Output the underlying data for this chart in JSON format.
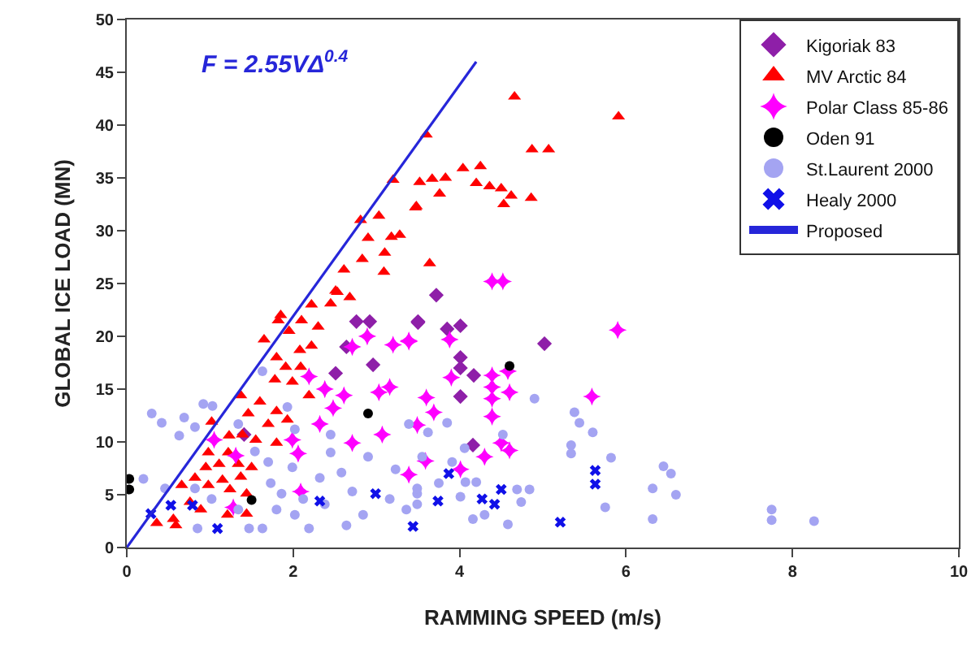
{
  "chart_data": {
    "type": "scatter",
    "xlabel": "RAMMING SPEED (m/s)",
    "ylabel": "GLOBAL ICE LOAD (MN)",
    "xlim": [
      0,
      10
    ],
    "xticks": [
      0,
      2,
      4,
      6,
      8,
      10
    ],
    "ylim": [
      0,
      50
    ],
    "yticks": [
      0,
      5,
      10,
      15,
      20,
      25,
      30,
      35,
      40,
      45,
      50
    ],
    "legend": "top right",
    "annotations": [
      "F = 2.55VΔ$^{0.4}$"
    ],
    "series": [
      {
        "name": "Kigoriak 83",
        "color": "#8e1fa8",
        "marker": "diamond",
        "x": [
          2.76,
          2.92,
          3.5,
          2.64,
          2.96,
          2.51,
          1.41,
          3.72,
          3.5,
          3.85,
          4.01,
          4.01,
          4.01,
          4.17,
          4.01,
          5.02,
          4.16
        ],
        "values": [
          21.4,
          21.4,
          21.4,
          19.0,
          17.3,
          16.5,
          10.7,
          23.9,
          21.3,
          20.7,
          21.0,
          18.0,
          17.0,
          16.3,
          14.3,
          19.3,
          9.7
        ]
      },
      {
        "name": "MV Arctic 84",
        "color": "#ff0000",
        "marker": "triangle",
        "x": [
          4.66,
          5.91,
          4.87,
          5.07,
          3.6,
          3.52,
          3.67,
          3.83,
          4.04,
          4.25,
          4.2,
          4.36,
          4.5,
          4.62,
          4.53,
          4.86,
          3.76,
          3.47,
          3.64,
          3.2,
          3.48,
          3.03,
          2.81,
          2.9,
          3.18,
          3.28,
          3.1,
          2.83,
          2.61,
          3.09,
          2.51,
          2.53,
          2.68,
          2.45,
          2.22,
          2.3,
          1.82,
          1.65,
          2.08,
          2.22,
          1.8,
          1.91,
          2.09,
          1.78,
          1.99,
          2.19,
          1.37,
          1.6,
          1.46,
          1.8,
          1.7,
          1.02,
          1.93,
          1.23,
          1.39,
          1.55,
          1.8,
          0.98,
          1.22,
          0.95,
          1.11,
          1.34,
          1.5,
          0.82,
          1.15,
          1.37,
          0.66,
          0.98,
          1.24,
          1.44,
          0.76,
          0.89,
          1.44,
          0.56,
          0.59,
          0.36,
          1.21,
          1.85,
          1.95,
          2.1
        ],
        "values": [
          42.7,
          40.8,
          37.7,
          37.7,
          39.1,
          34.6,
          34.9,
          35.0,
          35.9,
          36.1,
          34.5,
          34.2,
          34.0,
          33.3,
          32.5,
          33.1,
          33.5,
          32.2,
          26.9,
          34.8,
          32.3,
          31.4,
          31.0,
          29.3,
          29.4,
          29.6,
          27.9,
          27.3,
          26.3,
          26.1,
          24.3,
          24.2,
          23.7,
          23.1,
          23.0,
          20.9,
          21.5,
          19.7,
          18.7,
          19.1,
          18.0,
          17.1,
          17.1,
          15.9,
          15.7,
          14.4,
          14.4,
          13.8,
          12.7,
          12.9,
          11.7,
          11.9,
          12.1,
          10.6,
          10.7,
          10.2,
          9.9,
          9.0,
          9.0,
          7.6,
          7.9,
          7.9,
          7.6,
          6.6,
          6.4,
          6.7,
          5.9,
          5.9,
          5.5,
          5.1,
          4.3,
          3.6,
          3.2,
          2.7,
          2.1,
          2.3,
          3.1,
          22.0,
          20.5,
          21.5
        ]
      },
      {
        "name": "Polar Class 85-86",
        "color": "#ff00ff",
        "marker": "star",
        "x": [
          3.39,
          3.88,
          3.9,
          3.6,
          3.69,
          3.49,
          4.39,
          4.39,
          4.39,
          4.39,
          4.6,
          4.58,
          4.5,
          4.6,
          4.3,
          3.39,
          3.59,
          4.01,
          5.59,
          5.9,
          4.39,
          4.52,
          3.2,
          3.39,
          2.89,
          2.71,
          3.16,
          3.03,
          2.61,
          2.38,
          2.19,
          2.48,
          2.32,
          2.06,
          1.99,
          1.05,
          1.31,
          3.07,
          2.71,
          2.09,
          1.28
        ],
        "values": [
          19.6,
          19.7,
          16.1,
          14.2,
          12.8,
          11.6,
          16.3,
          15.2,
          14.1,
          12.4,
          14.7,
          16.7,
          9.9,
          9.2,
          8.6,
          6.9,
          8.2,
          7.4,
          14.3,
          20.6,
          25.2,
          25.2,
          19.2,
          19.5,
          20.0,
          19.0,
          15.2,
          14.7,
          14.4,
          15.0,
          16.2,
          13.2,
          11.7,
          8.9,
          10.2,
          10.2,
          8.7,
          10.7,
          9.9,
          5.3,
          3.8
        ]
      },
      {
        "name": "Oden 91",
        "color": "#000000",
        "marker": "circle",
        "x": [
          0.03,
          0.03,
          1.5,
          2.9,
          4.6
        ],
        "values": [
          6.5,
          5.5,
          4.5,
          12.7,
          17.2
        ]
      },
      {
        "name": "St.Laurent 2000",
        "color": "#a4a4f2",
        "marker": "circle",
        "x": [
          0.3,
          0.42,
          0.63,
          0.69,
          0.92,
          1.03,
          0.82,
          1.63,
          1.34,
          1.93,
          2.02,
          1.54,
          1.7,
          1.99,
          2.45,
          2.58,
          2.32,
          1.73,
          1.86,
          2.12,
          2.38,
          1.8,
          2.02,
          1.63,
          1.47,
          0.85,
          1.34,
          0.82,
          0.46,
          0.2,
          1.02,
          2.71,
          2.84,
          3.16,
          3.36,
          3.23,
          3.39,
          2.9,
          2.45,
          2.64,
          3.49,
          2.19,
          4.9,
          5.38,
          5.44,
          5.6,
          5.34,
          5.34,
          5.82,
          4.52,
          3.62,
          3.85,
          4.06,
          3.91,
          3.55,
          4.07,
          4.2,
          4.01,
          4.16,
          4.3,
          4.58,
          4.69,
          4.84,
          4.74,
          5.75,
          6.32,
          6.45,
          6.54,
          6.6,
          6.32,
          3.49,
          3.75,
          3.49,
          7.75,
          7.75,
          8.26
        ],
        "values": [
          12.7,
          11.8,
          10.6,
          12.3,
          13.6,
          13.4,
          11.4,
          16.7,
          11.7,
          13.3,
          11.2,
          9.1,
          8.1,
          7.6,
          9.0,
          7.1,
          6.6,
          6.1,
          5.1,
          4.6,
          4.1,
          3.6,
          3.1,
          1.8,
          1.8,
          1.8,
          3.6,
          5.6,
          5.6,
          6.5,
          4.6,
          5.3,
          3.1,
          4.6,
          3.6,
          7.4,
          11.7,
          8.6,
          10.7,
          2.1,
          5.1,
          1.8,
          14.1,
          12.8,
          11.8,
          10.9,
          9.7,
          8.9,
          8.5,
          10.7,
          10.9,
          11.8,
          9.4,
          8.1,
          8.6,
          6.2,
          6.2,
          4.8,
          2.7,
          3.1,
          2.2,
          5.5,
          5.5,
          4.3,
          3.8,
          5.6,
          7.7,
          7.0,
          5.0,
          2.7,
          5.6,
          6.1,
          4.1,
          3.6,
          2.6,
          2.5
        ]
      },
      {
        "name": "Healy 2000",
        "color": "#1010e8",
        "marker": "cross",
        "x": [
          0.29,
          0.53,
          0.79,
          1.09,
          2.32,
          2.99,
          3.44,
          3.87,
          3.74,
          4.27,
          4.42,
          4.5,
          5.21,
          5.63,
          5.63
        ],
        "values": [
          3.2,
          4.0,
          4.0,
          1.8,
          4.4,
          5.1,
          2.0,
          7.0,
          4.4,
          4.6,
          4.1,
          5.5,
          2.4,
          7.3,
          6.0
        ]
      },
      {
        "name": "Proposed",
        "color": "#2626d9",
        "type": "line",
        "marker": "none",
        "x": [
          0,
          4.2
        ],
        "values": [
          0,
          46
        ]
      }
    ]
  }
}
